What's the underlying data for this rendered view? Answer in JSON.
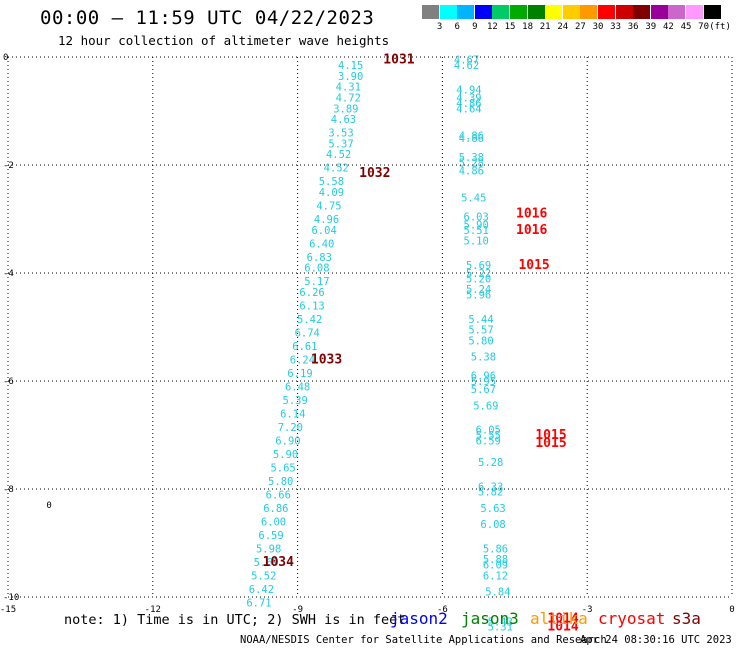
{
  "title": "00:00 – 11:59 UTC 04/22/2023",
  "subtitle": "12 hour collection of altimeter wave heights",
  "colorbar": {
    "unit": "(ft)",
    "entries": [
      {
        "label": "3",
        "color": "#808080"
      },
      {
        "label": "6",
        "color": "#00ffff"
      },
      {
        "label": "9",
        "color": "#00b4ff"
      },
      {
        "label": "12",
        "color": "#0000ff"
      },
      {
        "label": "15",
        "color": "#00cc66"
      },
      {
        "label": "18",
        "color": "#00aa00"
      },
      {
        "label": "21",
        "color": "#008000"
      },
      {
        "label": "24",
        "color": "#ffff00"
      },
      {
        "label": "27",
        "color": "#ffcc00"
      },
      {
        "label": "30",
        "color": "#ff9900"
      },
      {
        "label": "33",
        "color": "#ff0000"
      },
      {
        "label": "36",
        "color": "#cc0000"
      },
      {
        "label": "39",
        "color": "#800000"
      },
      {
        "label": "42",
        "color": "#990099"
      },
      {
        "label": "45",
        "color": "#cc66cc"
      },
      {
        "label": "70",
        "color": "#ff99ff"
      },
      {
        "label": "",
        "color": "#000000"
      }
    ]
  },
  "note": "note: 1) Time is in UTC; 2) SWH is in feet",
  "satellites": [
    {
      "name": "jason2",
      "color": "#0000ff"
    },
    {
      "name": "jason3",
      "color": "#008000"
    },
    {
      "name": "altika",
      "color": "#ff9900"
    },
    {
      "name": "cryosat",
      "color": "#ff0000"
    },
    {
      "name": "s3a",
      "color": "#800000"
    }
  ],
  "footer": "NOAA/NESDIS Center for Satellite Applications and Research",
  "timestamp": "Apr 24 08:30:16 UTC 2023",
  "chart_data": {
    "type": "scatter",
    "xlim": [
      -15,
      0
    ],
    "ylim": [
      -10,
      0
    ],
    "x_ticks": [
      "-15",
      "-12",
      "-9",
      "-6",
      "-3",
      "0"
    ],
    "y_ticks": [
      "0",
      "-2",
      "-4",
      "-6",
      "-8",
      "-10"
    ],
    "grid": true,
    "swh_color": "#22ccdd",
    "pressure_colors": {
      "s3a": "#800000",
      "cryosat": "#ff0000"
    },
    "wave_heights": [
      {
        "x": -7.9,
        "y": -0.15,
        "label": "4.15"
      },
      {
        "x": -7.9,
        "y": -0.35,
        "label": "3.90"
      },
      {
        "x": -7.95,
        "y": -0.55,
        "label": "4.31"
      },
      {
        "x": -7.95,
        "y": -0.75,
        "label": "4.72"
      },
      {
        "x": -8.0,
        "y": -0.95,
        "label": "3.89"
      },
      {
        "x": -8.05,
        "y": -1.15,
        "label": "4.63"
      },
      {
        "x": -8.1,
        "y": -1.4,
        "label": "3.53"
      },
      {
        "x": -8.1,
        "y": -1.6,
        "label": "5.37"
      },
      {
        "x": -8.15,
        "y": -1.8,
        "label": "4.52"
      },
      {
        "x": -8.2,
        "y": -2.05,
        "label": "4.52"
      },
      {
        "x": -8.3,
        "y": -2.3,
        "label": "5.58"
      },
      {
        "x": -8.3,
        "y": -2.5,
        "label": "4.09"
      },
      {
        "x": -8.35,
        "y": -2.75,
        "label": "4.75"
      },
      {
        "x": -8.4,
        "y": -3.0,
        "label": "4.96"
      },
      {
        "x": -8.45,
        "y": -3.2,
        "label": "6.04"
      },
      {
        "x": -8.5,
        "y": -3.45,
        "label": "6.40"
      },
      {
        "x": -8.55,
        "y": -3.7,
        "label": "6.83"
      },
      {
        "x": -8.6,
        "y": -3.9,
        "label": "6.08"
      },
      {
        "x": -8.6,
        "y": -4.15,
        "label": "5.17"
      },
      {
        "x": -8.7,
        "y": -4.35,
        "label": "6.26"
      },
      {
        "x": -8.7,
        "y": -4.6,
        "label": "6.13"
      },
      {
        "x": -8.75,
        "y": -4.85,
        "label": "5.42"
      },
      {
        "x": -8.8,
        "y": -5.1,
        "label": "6.74"
      },
      {
        "x": -8.85,
        "y": -5.35,
        "label": "6.61"
      },
      {
        "x": -8.9,
        "y": -5.6,
        "label": "6.24"
      },
      {
        "x": -8.95,
        "y": -5.85,
        "label": "6.19"
      },
      {
        "x": -9.0,
        "y": -6.1,
        "label": "6.48"
      },
      {
        "x": -9.05,
        "y": -6.35,
        "label": "5.39"
      },
      {
        "x": -9.1,
        "y": -6.6,
        "label": "6.14"
      },
      {
        "x": -9.15,
        "y": -6.85,
        "label": "7.20"
      },
      {
        "x": -9.2,
        "y": -7.1,
        "label": "6.90"
      },
      {
        "x": -9.25,
        "y": -7.35,
        "label": "5.90"
      },
      {
        "x": -9.3,
        "y": -7.6,
        "label": "5.65"
      },
      {
        "x": -9.35,
        "y": -7.85,
        "label": "5.80"
      },
      {
        "x": -9.4,
        "y": -8.1,
        "label": "6.66"
      },
      {
        "x": -9.45,
        "y": -8.35,
        "label": "6.86"
      },
      {
        "x": -9.5,
        "y": -8.6,
        "label": "6.00"
      },
      {
        "x": -9.55,
        "y": -8.85,
        "label": "6.59"
      },
      {
        "x": -9.6,
        "y": -9.1,
        "label": "5.98"
      },
      {
        "x": -9.65,
        "y": -9.35,
        "label": "5.69"
      },
      {
        "x": -9.7,
        "y": -9.6,
        "label": "5.52"
      },
      {
        "x": -9.75,
        "y": -9.85,
        "label": "6.42"
      },
      {
        "x": -9.8,
        "y": -10.1,
        "label": "6.71"
      },
      {
        "x": -5.5,
        "y": -0.05,
        "label": "4.67"
      },
      {
        "x": -5.5,
        "y": -0.15,
        "label": "4.62"
      },
      {
        "x": -5.45,
        "y": -0.6,
        "label": "4.94"
      },
      {
        "x": -5.45,
        "y": -0.75,
        "label": "4.39"
      },
      {
        "x": -5.45,
        "y": -0.85,
        "label": "4.86"
      },
      {
        "x": -5.45,
        "y": -0.95,
        "label": "4.64"
      },
      {
        "x": -5.4,
        "y": -1.45,
        "label": "4.86"
      },
      {
        "x": -5.4,
        "y": -1.5,
        "label": "4.86"
      },
      {
        "x": -5.4,
        "y": -1.85,
        "label": "5.38"
      },
      {
        "x": -5.4,
        "y": -1.95,
        "label": "5.28"
      },
      {
        "x": -5.4,
        "y": -2.1,
        "label": "4.86"
      },
      {
        "x": -5.35,
        "y": -2.6,
        "label": "5.45"
      },
      {
        "x": -5.3,
        "y": -2.95,
        "label": "6.03"
      },
      {
        "x": -5.3,
        "y": -3.1,
        "label": "5.90"
      },
      {
        "x": -5.3,
        "y": -3.2,
        "label": "5.51"
      },
      {
        "x": -5.3,
        "y": -3.4,
        "label": "5.10"
      },
      {
        "x": -5.25,
        "y": -3.85,
        "label": "5.69"
      },
      {
        "x": -5.25,
        "y": -4.0,
        "label": "5.22"
      },
      {
        "x": -5.25,
        "y": -4.1,
        "label": "5.20"
      },
      {
        "x": -5.25,
        "y": -4.3,
        "label": "5.24"
      },
      {
        "x": -5.25,
        "y": -4.4,
        "label": "5.96"
      },
      {
        "x": -5.2,
        "y": -4.85,
        "label": "5.44"
      },
      {
        "x": -5.2,
        "y": -5.05,
        "label": "5.57"
      },
      {
        "x": -5.2,
        "y": -5.25,
        "label": "5.80"
      },
      {
        "x": -5.15,
        "y": -5.55,
        "label": "5.38"
      },
      {
        "x": -5.15,
        "y": -5.9,
        "label": "6.96"
      },
      {
        "x": -5.15,
        "y": -6.0,
        "label": "5.95"
      },
      {
        "x": -5.15,
        "y": -6.15,
        "label": "5.67"
      },
      {
        "x": -5.1,
        "y": -6.45,
        "label": "5.69"
      },
      {
        "x": -5.05,
        "y": -6.9,
        "label": "6.05"
      },
      {
        "x": -5.05,
        "y": -7.0,
        "label": "5.55"
      },
      {
        "x": -5.05,
        "y": -7.1,
        "label": "6.59"
      },
      {
        "x": -5.0,
        "y": -7.5,
        "label": "5.28"
      },
      {
        "x": -5.0,
        "y": -7.95,
        "label": "6.33"
      },
      {
        "x": -5.0,
        "y": -8.05,
        "label": "5.82"
      },
      {
        "x": -4.95,
        "y": -8.35,
        "label": "5.63"
      },
      {
        "x": -4.95,
        "y": -8.65,
        "label": "6.08"
      },
      {
        "x": -4.9,
        "y": -9.1,
        "label": "5.86"
      },
      {
        "x": -4.9,
        "y": -9.3,
        "label": "5.88"
      },
      {
        "x": -4.9,
        "y": -9.4,
        "label": "6.09"
      },
      {
        "x": -4.9,
        "y": -9.6,
        "label": "6.12"
      },
      {
        "x": -4.85,
        "y": -9.9,
        "label": "5.84"
      },
      {
        "x": -4.8,
        "y": -10.45,
        "label": "5.43"
      },
      {
        "x": -4.8,
        "y": -10.55,
        "label": "5.31"
      }
    ],
    "pressure_labels": [
      {
        "x": -6.9,
        "y": -0.05,
        "label": "1031",
        "sat": "s3a"
      },
      {
        "x": -7.4,
        "y": -2.15,
        "label": "1032",
        "sat": "s3a"
      },
      {
        "x": -8.4,
        "y": -5.6,
        "label": "1033",
        "sat": "s3a"
      },
      {
        "x": -9.4,
        "y": -9.35,
        "label": "1034",
        "sat": "s3a"
      },
      {
        "x": -4.15,
        "y": -2.9,
        "label": "1016",
        "sat": "cryosat"
      },
      {
        "x": -4.15,
        "y": -3.2,
        "label": "1016",
        "sat": "cryosat"
      },
      {
        "x": -4.1,
        "y": -3.85,
        "label": "1015",
        "sat": "cryosat"
      },
      {
        "x": -3.75,
        "y": -7.0,
        "label": "1015",
        "sat": "cryosat"
      },
      {
        "x": -3.75,
        "y": -7.15,
        "label": "1015",
        "sat": "cryosat"
      },
      {
        "x": -3.5,
        "y": -10.4,
        "label": "1014",
        "sat": "cryosat"
      },
      {
        "x": -3.5,
        "y": -10.55,
        "label": "1014",
        "sat": "cryosat"
      }
    ],
    "annotations": [
      {
        "x": -14.15,
        "y": -8.3,
        "label": "0"
      }
    ]
  }
}
